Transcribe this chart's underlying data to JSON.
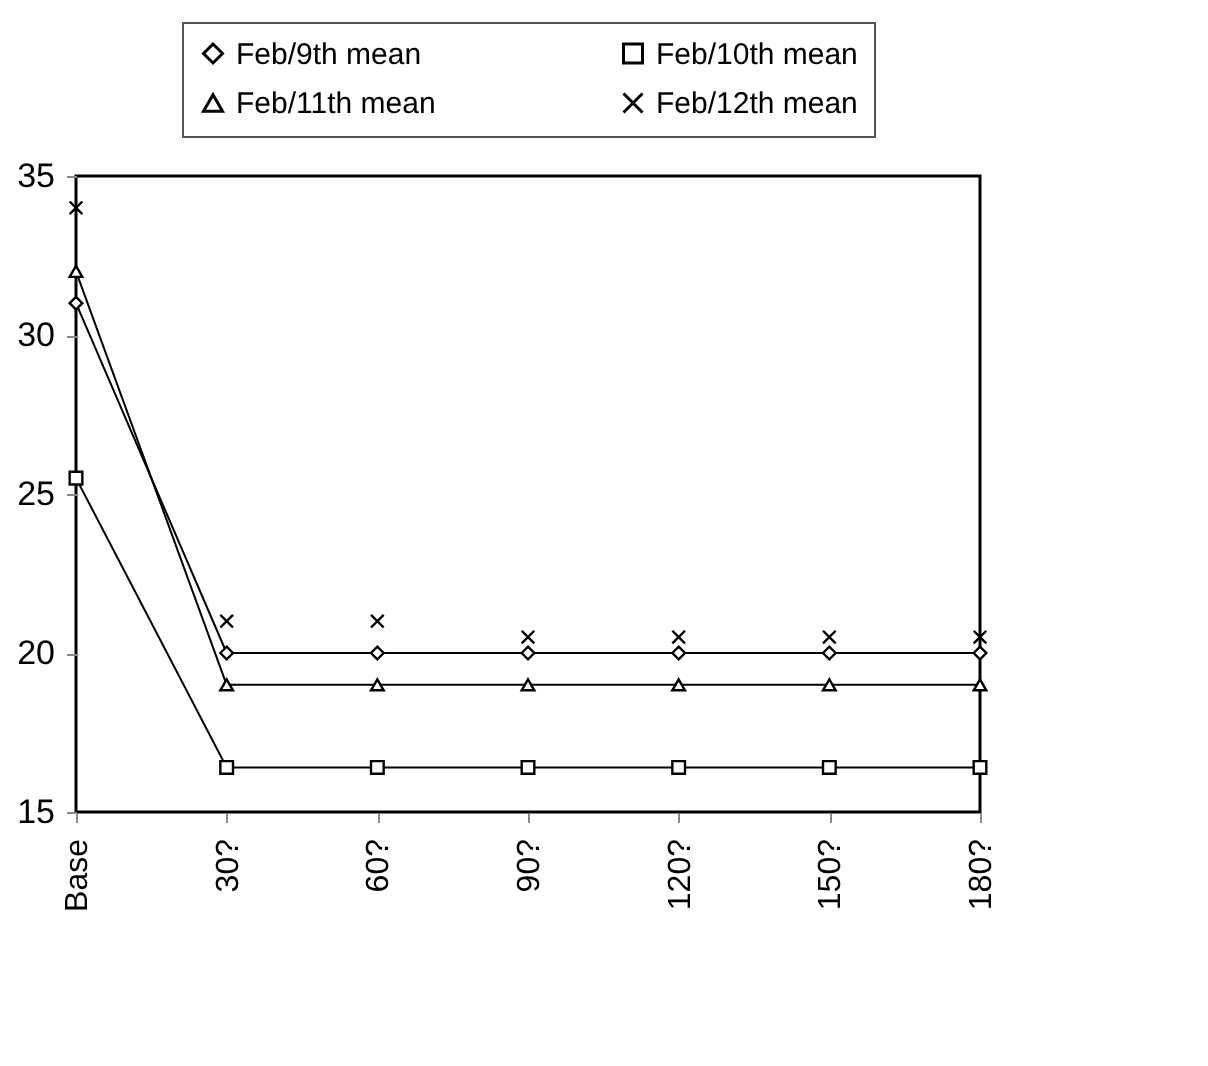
{
  "chart_data": {
    "type": "line",
    "categories": [
      "Base",
      "30?",
      "60?",
      "90?",
      "120?",
      "150?",
      "180?"
    ],
    "series": [
      {
        "name": "Feb/9th mean",
        "marker": "diamond",
        "color": "#000000",
        "values": [
          31,
          20,
          20,
          20,
          20,
          20,
          20
        ]
      },
      {
        "name": "Feb/10th mean",
        "marker": "square",
        "color": "#000000",
        "values": [
          25.5,
          16.4,
          16.4,
          16.4,
          16.4,
          16.4,
          16.4
        ]
      },
      {
        "name": "Feb/11th mean",
        "marker": "triangle",
        "color": "#000000",
        "values": [
          32,
          19,
          19,
          19,
          19,
          19,
          19
        ]
      },
      {
        "name": "Feb/12th mean",
        "type": "scatter",
        "marker": "cross",
        "color": "#000000",
        "values": [
          34,
          21,
          21,
          20.5,
          20.5,
          20.5,
          20.5
        ]
      }
    ],
    "ylim": [
      15,
      35
    ],
    "yticks": [
      15,
      20,
      25,
      30,
      35
    ],
    "grid": false,
    "legend": "top"
  }
}
